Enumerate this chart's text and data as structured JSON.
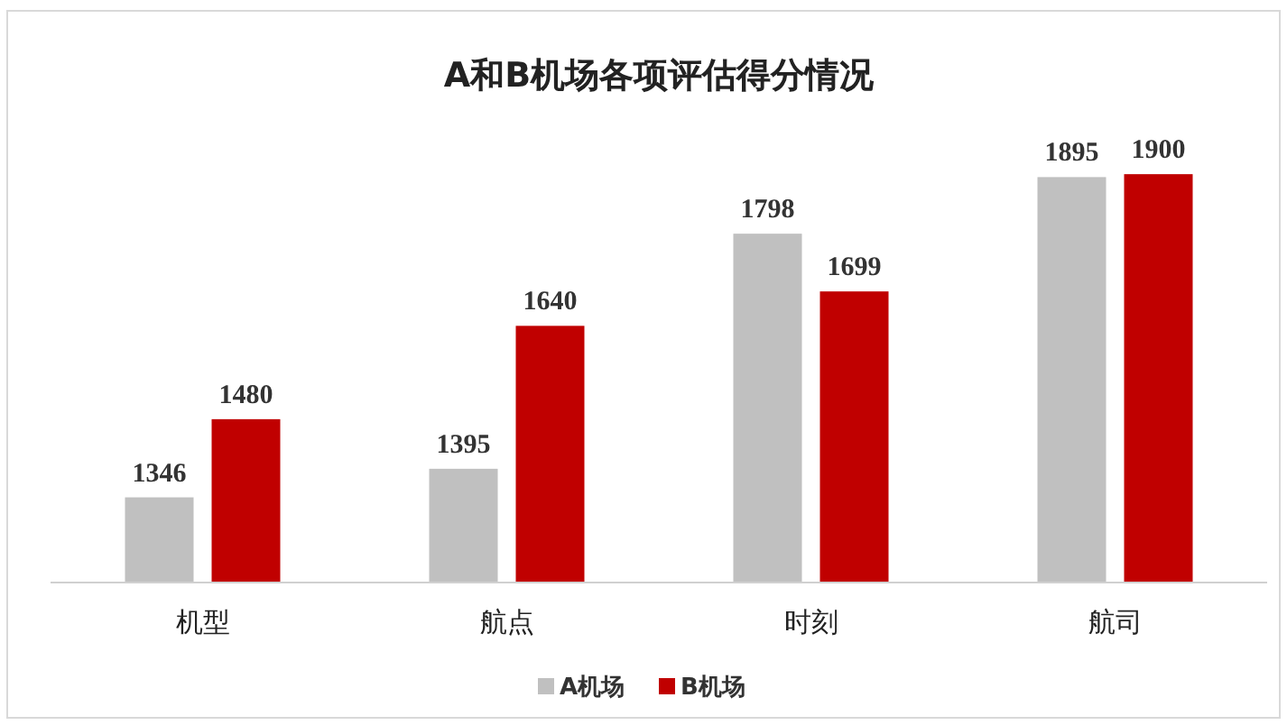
{
  "chart_data": {
    "type": "bar",
    "title": "A和B机场各项评估得分情况",
    "categories": [
      "机型",
      "航点",
      "时刻",
      "航司"
    ],
    "series": [
      {
        "name": "A机场",
        "color": "#c0c0c0",
        "values": [
          1346,
          1395,
          1798,
          1895
        ]
      },
      {
        "name": "B机场",
        "color": "#c00000",
        "values": [
          1480,
          1640,
          1699,
          1900
        ]
      }
    ],
    "ylim": [
      1200,
      2180
    ],
    "tick_labels": "x",
    "data_labels": true,
    "legend": "bottom"
  }
}
